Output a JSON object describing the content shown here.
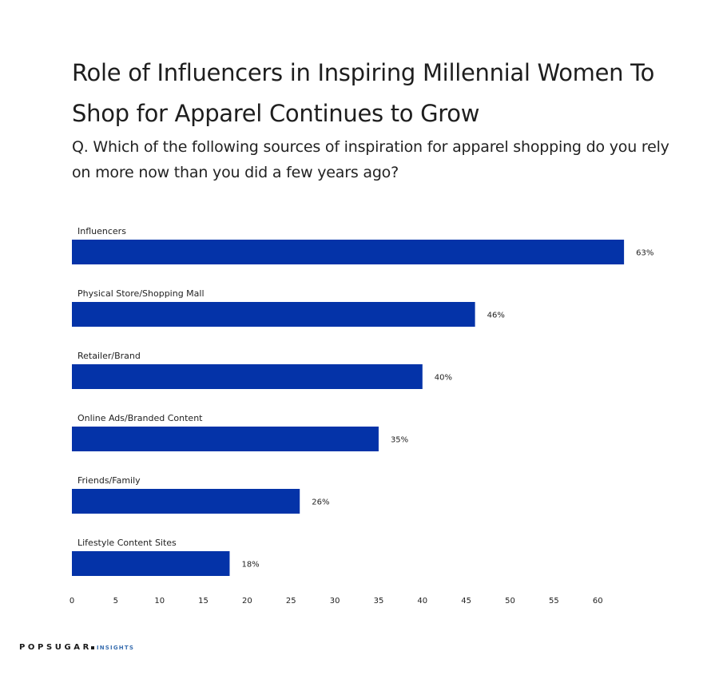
{
  "header": {
    "title": "Role of Influencers in Inspiring Millennial Women To Shop for Apparel Continues to Grow",
    "subtitle": "Q. Which of the following sources of inspiration for apparel shopping do you rely on more now than you did a few years ago?"
  },
  "chart_data": {
    "type": "bar",
    "orientation": "horizontal",
    "categories": [
      "Influencers",
      "Physical Store/Shopping Mall",
      "Retailer/Brand",
      "Online Ads/Branded Content",
      "Friends/Family",
      "Lifestyle Content Sites"
    ],
    "values": [
      63,
      46,
      40,
      35,
      26,
      18
    ],
    "value_labels": [
      "63%",
      "46%",
      "40%",
      "35%",
      "26%",
      "18%"
    ],
    "xlim": [
      0,
      65
    ],
    "xticks": [
      0,
      5,
      10,
      15,
      20,
      25,
      30,
      35,
      40,
      45,
      50,
      55,
      60
    ],
    "bar_color": "#0433a8",
    "grid": false
  },
  "brand": {
    "name": "POPSUGAR",
    "suffix": "INSIGHTS"
  }
}
